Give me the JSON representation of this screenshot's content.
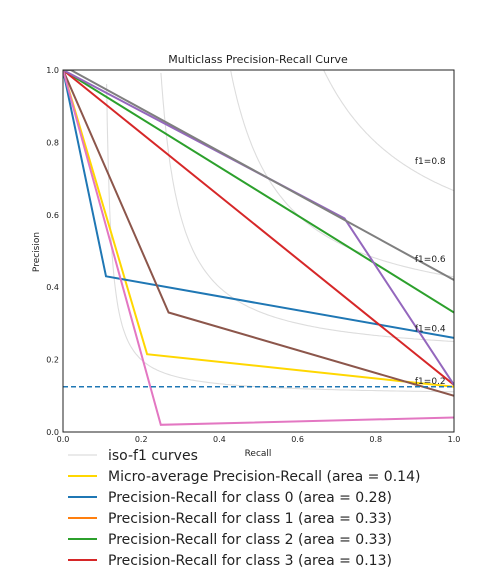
{
  "chart_data": {
    "type": "line",
    "title": "Multiclass Precision-Recall Curve",
    "xlabel": "Recall",
    "ylabel": "Precision",
    "xlim": [
      0.0,
      1.0
    ],
    "ylim": [
      0.0,
      1.0
    ],
    "xticks": [
      "0.0",
      "0.2",
      "0.4",
      "0.6",
      "0.8",
      "1.0"
    ],
    "yticks": [
      "0.0",
      "0.2",
      "0.4",
      "0.6",
      "0.8",
      "1.0"
    ],
    "grid": false,
    "baseline": {
      "y": 0.125,
      "color": "#1f77b4",
      "style": "dashed"
    },
    "iso_f1": {
      "legend": "iso-f1 curves",
      "color": "#dddddd",
      "levels": [
        0.2,
        0.4,
        0.6,
        0.8
      ],
      "labels": [
        "f1=0.2",
        "f1=0.4",
        "f1=0.6",
        "f1=0.8"
      ]
    },
    "legend_placement": "below",
    "series": [
      {
        "name": "Micro-average Precision-Recall (area = 0.14)",
        "color": "#ffd700",
        "x": [
          0.0,
          0.215,
          1.0
        ],
        "y": [
          1.0,
          0.215,
          0.125
        ]
      },
      {
        "name": "Precision-Recall for class 0 (area = 0.28)",
        "color": "#1f77b4",
        "x": [
          0.0,
          0.11,
          1.0
        ],
        "y": [
          1.0,
          0.43,
          0.26
        ]
      },
      {
        "name": "Precision-Recall for class 1 (area = 0.33)",
        "color": "#ff7f0e",
        "x": [],
        "y": []
      },
      {
        "name": "Precision-Recall for class 2 (area = 0.33)",
        "color": "#2ca02c",
        "x": [
          0.0,
          1.0
        ],
        "y": [
          1.0,
          0.33
        ]
      },
      {
        "name": "Precision-Recall for class 3 (area = 0.13)",
        "color": "#d62728",
        "x": [
          0.0,
          1.0
        ],
        "y": [
          1.0,
          0.13
        ]
      },
      {
        "name": "",
        "color": "#9467bd",
        "x": [
          0.0,
          0.72,
          1.0
        ],
        "y": [
          1.0,
          0.59,
          0.13
        ]
      },
      {
        "name": "",
        "color": "#8c564b",
        "x": [
          0.0,
          0.27,
          1.0
        ],
        "y": [
          1.0,
          0.33,
          0.1
        ]
      },
      {
        "name": "",
        "color": "#e377c2",
        "x": [
          0.0,
          0.25,
          1.0
        ],
        "y": [
          1.0,
          0.02,
          0.04
        ]
      },
      {
        "name": "",
        "color": "#7f7f7f",
        "x": [
          0.0,
          0.02,
          1.0
        ],
        "y": [
          1.0,
          1.0,
          0.42
        ]
      }
    ]
  }
}
